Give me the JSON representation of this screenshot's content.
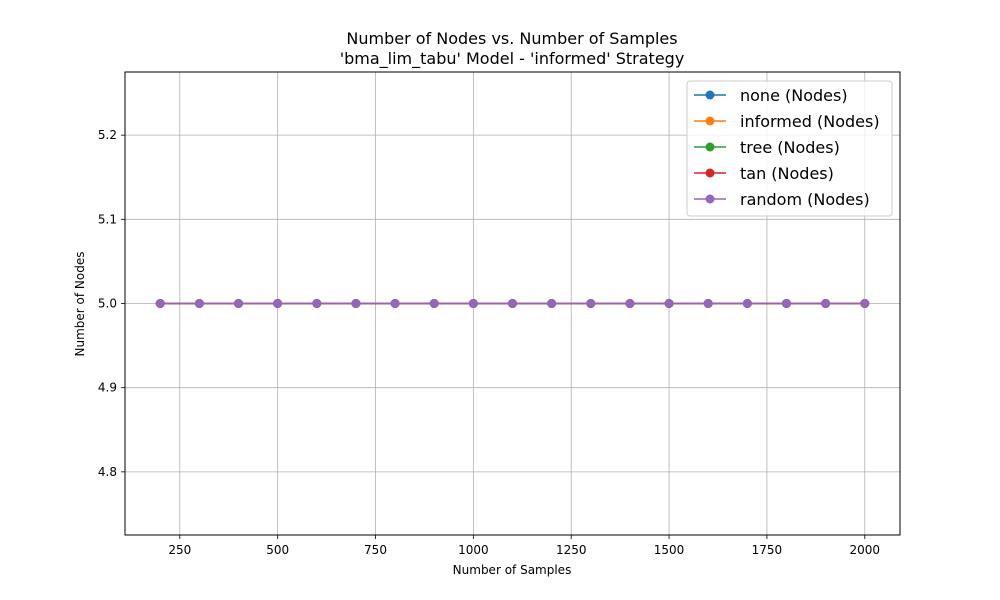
{
  "chart_data": {
    "type": "line",
    "title": "Number of Nodes vs. Number of Samples",
    "subtitle": "'bma_lim_tabu' Model - 'informed' Strategy",
    "xlabel": "Number of Samples",
    "ylabel": "Number of Nodes",
    "xlim": [
      110,
      2090
    ],
    "ylim": [
      4.725,
      5.275
    ],
    "x_ticks": [
      250,
      500,
      750,
      1000,
      1250,
      1500,
      1750,
      2000
    ],
    "x_tick_labels": [
      "250",
      "500",
      "750",
      "1000",
      "1250",
      "1500",
      "1750",
      "2000"
    ],
    "y_ticks": [
      4.8,
      4.9,
      5.0,
      5.1,
      5.2
    ],
    "y_tick_labels": [
      "4.8",
      "4.9",
      "5.0",
      "5.1",
      "5.2"
    ],
    "grid": true,
    "legend_position": "top-right",
    "x": [
      200,
      300,
      400,
      500,
      600,
      700,
      800,
      900,
      1000,
      1100,
      1200,
      1300,
      1400,
      1500,
      1600,
      1700,
      1800,
      1900,
      2000
    ],
    "series": [
      {
        "name": "none (Nodes)",
        "color": "#1f77b4",
        "values": [
          5,
          5,
          5,
          5,
          5,
          5,
          5,
          5,
          5,
          5,
          5,
          5,
          5,
          5,
          5,
          5,
          5,
          5,
          5
        ]
      },
      {
        "name": "informed (Nodes)",
        "color": "#ff7f0e",
        "values": [
          5,
          5,
          5,
          5,
          5,
          5,
          5,
          5,
          5,
          5,
          5,
          5,
          5,
          5,
          5,
          5,
          5,
          5,
          5
        ]
      },
      {
        "name": "tree (Nodes)",
        "color": "#2ca02c",
        "values": [
          5,
          5,
          5,
          5,
          5,
          5,
          5,
          5,
          5,
          5,
          5,
          5,
          5,
          5,
          5,
          5,
          5,
          5,
          5
        ]
      },
      {
        "name": "tan (Nodes)",
        "color": "#d62728",
        "values": [
          5,
          5,
          5,
          5,
          5,
          5,
          5,
          5,
          5,
          5,
          5,
          5,
          5,
          5,
          5,
          5,
          5,
          5,
          5
        ]
      },
      {
        "name": "random (Nodes)",
        "color": "#9467bd",
        "values": [
          5,
          5,
          5,
          5,
          5,
          5,
          5,
          5,
          5,
          5,
          5,
          5,
          5,
          5,
          5,
          5,
          5,
          5,
          5
        ]
      }
    ]
  }
}
